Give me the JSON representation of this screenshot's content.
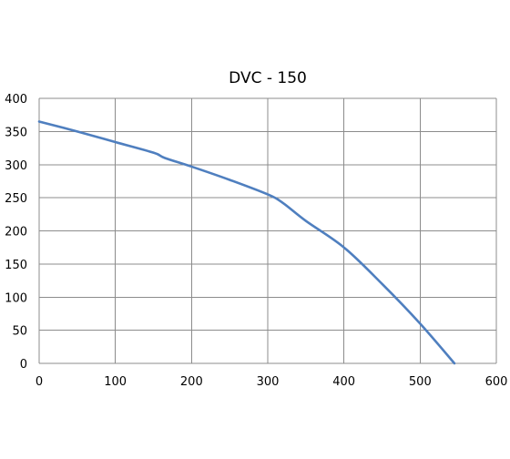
{
  "chart_data": {
    "type": "line",
    "title": "DVC - 150",
    "xlabel": "",
    "ylabel": "",
    "xlim": [
      0,
      600
    ],
    "ylim": [
      0,
      400
    ],
    "xticks": [
      0,
      100,
      200,
      300,
      400,
      500,
      600
    ],
    "yticks": [
      0,
      50,
      100,
      150,
      200,
      250,
      300,
      350,
      400
    ],
    "grid": true,
    "legend": "none",
    "series_color": "#4f7fbf",
    "series": [
      {
        "x": [
          0,
          50,
          100,
          150,
          165,
          200,
          250,
          300,
          320,
          350,
          400,
          450,
          500,
          545
        ],
        "y": [
          365,
          350,
          334,
          318,
          310,
          297,
          277,
          255,
          242,
          215,
          175,
          120,
          60,
          0
        ]
      }
    ]
  }
}
